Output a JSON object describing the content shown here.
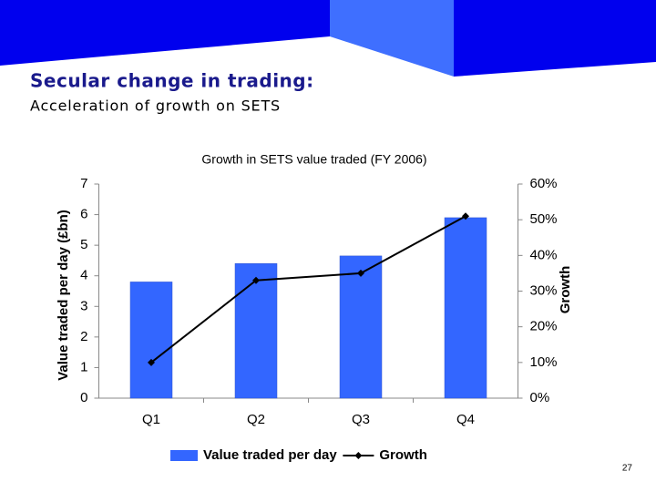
{
  "header": {
    "title": "Secular change in trading:",
    "subtitle": "Acceleration of growth on SETS"
  },
  "page_number": "27",
  "chart_data": {
    "type": "bar_line",
    "title": "Growth in SETS value traded (FY 2006)",
    "categories": [
      "Q1",
      "Q2",
      "Q3",
      "Q4"
    ],
    "y_label": "Value traded per day (£bn)",
    "y2_label": "Growth",
    "series": [
      {
        "name": "Value traded per day",
        "color": "#3366ff",
        "type": "bar",
        "values": [
          3.8,
          4.4,
          4.65,
          5.9
        ]
      },
      {
        "name": "Growth",
        "color": "#000000",
        "type": "line",
        "axis": "y2",
        "values": [
          10,
          33,
          35,
          51
        ]
      }
    ],
    "ylim": [
      0,
      7
    ],
    "yticks": [
      0,
      1,
      2,
      3,
      4,
      5,
      6,
      7
    ],
    "y2lim": [
      0,
      60
    ],
    "y2ticks": [
      {
        "value": 0,
        "label": "0%"
      },
      {
        "value": 10,
        "label": "10%"
      },
      {
        "value": 20,
        "label": "20%"
      },
      {
        "value": 30,
        "label": "30%"
      },
      {
        "value": 40,
        "label": "40%"
      },
      {
        "value": 50,
        "label": "50%"
      },
      {
        "value": 60,
        "label": "60%"
      }
    ],
    "legend": "bottom"
  }
}
